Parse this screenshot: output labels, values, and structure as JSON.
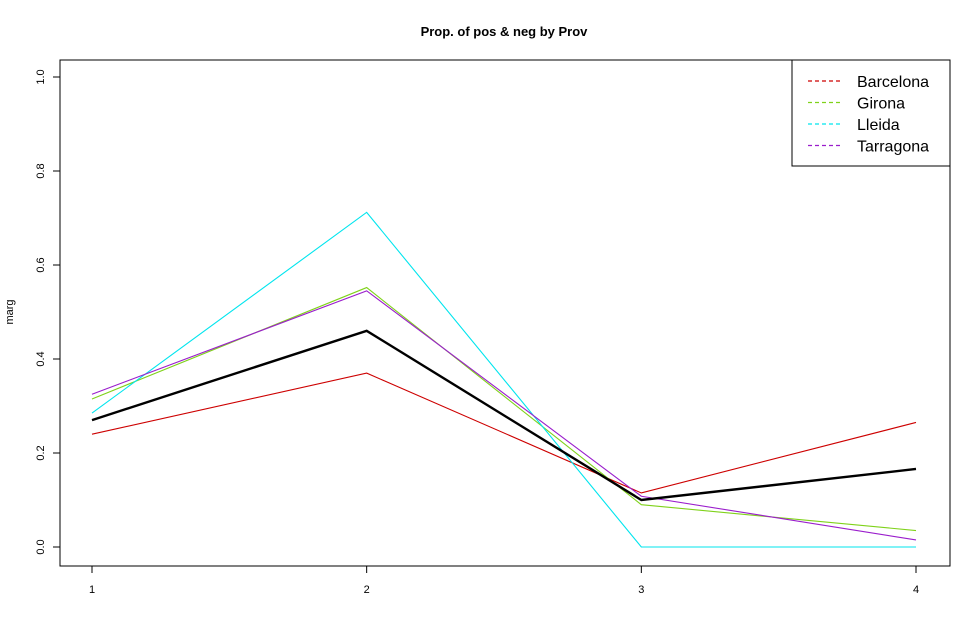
{
  "chart_data": {
    "type": "line",
    "title": "Prop. of pos & neg by Prov",
    "xlabel": "",
    "ylabel": "marg",
    "x": [
      1,
      2,
      3,
      4
    ],
    "xlim": [
      1,
      4
    ],
    "ylim": [
      0.0,
      1.0
    ],
    "xticks": [
      "1",
      "2",
      "3",
      "4"
    ],
    "yticks": [
      "0.0",
      "0.2",
      "0.4",
      "0.6",
      "0.8",
      "1.0"
    ],
    "grid": false,
    "legend_position": "top-right",
    "series": [
      {
        "name": "Barcelona",
        "color": "#cd0000",
        "values": [
          0.24,
          0.37,
          0.115,
          0.265
        ]
      },
      {
        "name": "Girona",
        "color": "#7fd21a",
        "values": [
          0.315,
          0.552,
          0.09,
          0.035
        ]
      },
      {
        "name": "Lleida",
        "color": "#00e5ee",
        "values": [
          0.285,
          0.712,
          0.0,
          0.0
        ]
      },
      {
        "name": "Tarragona",
        "color": "#9a1dcc",
        "values": [
          0.325,
          0.545,
          0.108,
          0.015
        ]
      }
    ],
    "overall": {
      "color": "#000000",
      "values": [
        0.27,
        0.46,
        0.1,
        0.166
      ]
    }
  }
}
